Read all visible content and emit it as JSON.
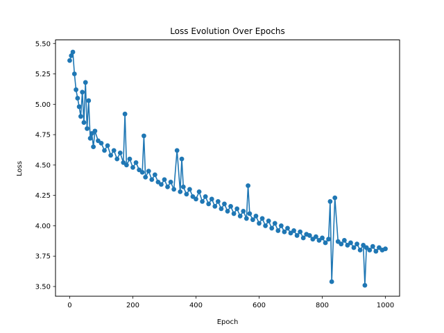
{
  "chart_data": {
    "type": "line",
    "title": "Loss Evolution Over Epochs",
    "xlabel": "Epoch",
    "ylabel": "Loss",
    "xlim": [
      -45,
      1045
    ],
    "ylim": [
      3.42,
      5.53
    ],
    "xticks": [
      0,
      200,
      400,
      600,
      800,
      1000
    ],
    "yticks": [
      3.5,
      3.75,
      4.0,
      4.25,
      4.5,
      4.75,
      5.0,
      5.25,
      5.5
    ],
    "grid": false,
    "marker": "circle",
    "color": "#1f77b4",
    "series": [
      {
        "x": [
          0,
          5,
          10,
          15,
          20,
          25,
          30,
          35,
          40,
          45,
          50,
          55,
          60,
          65,
          70,
          75,
          80,
          90,
          100,
          110,
          120,
          130,
          140,
          150,
          160,
          170,
          175,
          180,
          190,
          200,
          210,
          220,
          230,
          235,
          240,
          250,
          260,
          270,
          280,
          290,
          300,
          310,
          320,
          330,
          340,
          350,
          355,
          360,
          370,
          380,
          390,
          400,
          410,
          420,
          430,
          440,
          450,
          460,
          470,
          480,
          490,
          500,
          510,
          520,
          530,
          540,
          550,
          560,
          565,
          570,
          580,
          590,
          600,
          610,
          620,
          630,
          640,
          650,
          660,
          670,
          680,
          690,
          700,
          710,
          720,
          730,
          740,
          750,
          760,
          770,
          780,
          790,
          800,
          810,
          820,
          825,
          830,
          840,
          850,
          860,
          870,
          880,
          890,
          900,
          910,
          920,
          930,
          935,
          940,
          950,
          960,
          970,
          980,
          990,
          1000
        ],
        "y": [
          5.36,
          5.4,
          5.43,
          5.25,
          5.12,
          5.05,
          4.98,
          4.9,
          5.1,
          4.85,
          5.18,
          4.8,
          5.03,
          4.72,
          4.76,
          4.65,
          4.78,
          4.7,
          4.68,
          4.62,
          4.66,
          4.58,
          4.62,
          4.55,
          4.6,
          4.52,
          4.92,
          4.5,
          4.55,
          4.48,
          4.52,
          4.46,
          4.44,
          4.74,
          4.4,
          4.45,
          4.38,
          4.42,
          4.36,
          4.34,
          4.38,
          4.32,
          4.36,
          4.3,
          4.62,
          4.28,
          4.55,
          4.32,
          4.26,
          4.3,
          4.24,
          4.22,
          4.28,
          4.2,
          4.24,
          4.18,
          4.22,
          4.16,
          4.2,
          4.14,
          4.18,
          4.12,
          4.16,
          4.1,
          4.14,
          4.08,
          4.12,
          4.06,
          4.33,
          4.1,
          4.05,
          4.08,
          4.02,
          4.06,
          4.0,
          4.04,
          3.98,
          4.02,
          3.96,
          4.0,
          3.95,
          3.98,
          3.94,
          3.96,
          3.92,
          3.95,
          3.9,
          3.93,
          3.92,
          3.89,
          3.91,
          3.88,
          3.9,
          3.86,
          3.89,
          4.2,
          3.54,
          4.23,
          3.87,
          3.85,
          3.88,
          3.84,
          3.86,
          3.82,
          3.85,
          3.8,
          3.84,
          3.51,
          3.82,
          3.8,
          3.83,
          3.79,
          3.82,
          3.8,
          3.81
        ]
      }
    ]
  }
}
